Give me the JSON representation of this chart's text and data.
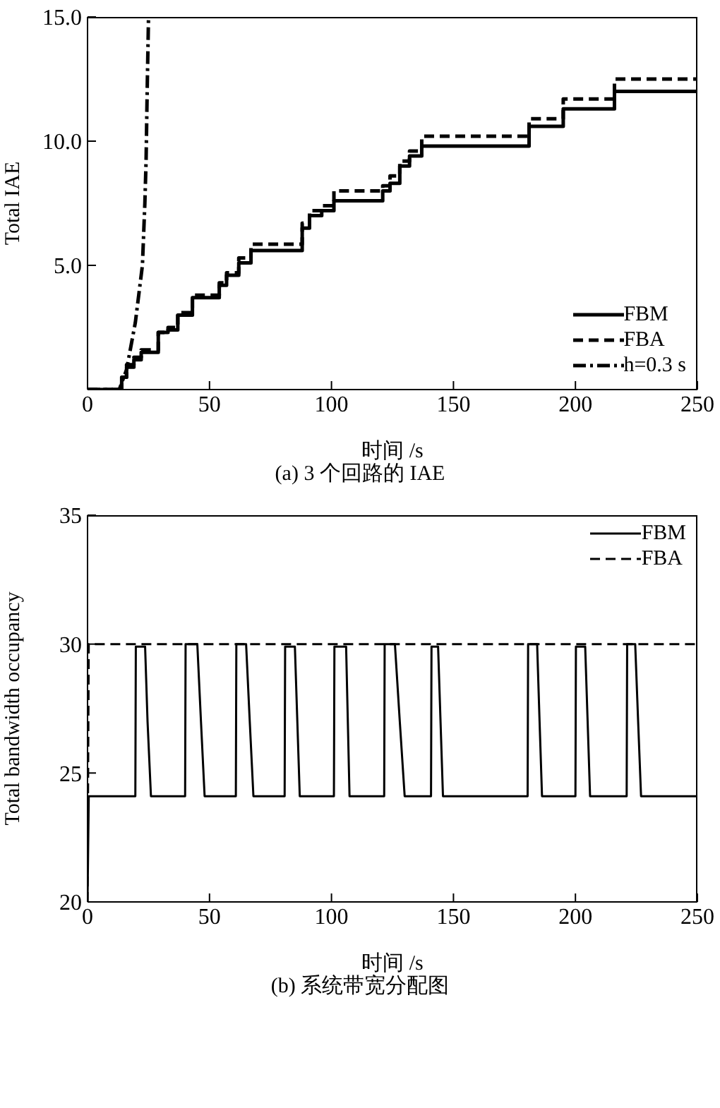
{
  "chart_data": [
    {
      "type": "step",
      "title": "(a) 3 个回路的 IAE",
      "xlabel": "时间 /s",
      "ylabel": "Total IAE",
      "xlim": [
        0,
        250
      ],
      "xticks": [
        0,
        50,
        100,
        150,
        200,
        250
      ],
      "ylim": [
        0,
        15
      ],
      "yticks": [
        {
          "value": 5,
          "label": "5.0"
        },
        {
          "value": 10,
          "label": "10.0"
        },
        {
          "value": 15,
          "label": "15.0"
        }
      ],
      "legend": "bottom right",
      "grid": false,
      "series": [
        {
          "name": "FBM",
          "color": "#000000",
          "line_style": "solid",
          "x": [
            0,
            14,
            16,
            19,
            22,
            29,
            33,
            37,
            43,
            54,
            57,
            62,
            67,
            88,
            91,
            96,
            101,
            121,
            124,
            128,
            132,
            137,
            181,
            195,
            216,
            250
          ],
          "values": [
            0,
            0.5,
            0.9,
            1.2,
            1.5,
            2.3,
            2.4,
            3.0,
            3.7,
            4.2,
            4.6,
            5.1,
            5.6,
            6.5,
            7.0,
            7.2,
            7.6,
            8.0,
            8.3,
            9.0,
            9.4,
            9.8,
            10.6,
            11.3,
            12.0,
            12.0
          ]
        },
        {
          "name": "FBA",
          "color": "#000000",
          "line_style": "dashed",
          "x": [
            0,
            14,
            16,
            19,
            22,
            29,
            33,
            37,
            43,
            54,
            57,
            62,
            67,
            88,
            91,
            96,
            101,
            121,
            124,
            128,
            132,
            137,
            181,
            195,
            216,
            250
          ],
          "values": [
            0,
            0.5,
            1.0,
            1.3,
            1.6,
            2.3,
            2.5,
            3.1,
            3.8,
            4.3,
            4.7,
            5.3,
            5.85,
            6.7,
            7.2,
            7.4,
            8.0,
            8.2,
            8.6,
            9.2,
            9.6,
            10.2,
            10.9,
            11.7,
            12.5,
            12.5
          ]
        },
        {
          "name": "h=0.3 s",
          "type": "line",
          "color": "#000000",
          "line_style": "dashdot",
          "x": [
            0,
            13,
            16,
            19.6,
            22.5,
            23.5,
            24,
            24.5,
            25
          ],
          "values": [
            0,
            0,
            0.8,
            2.7,
            5.0,
            7.5,
            9.2,
            12.3,
            15
          ]
        }
      ]
    },
    {
      "type": "line",
      "title": "(b) 系统带宽分配图",
      "xlabel": "时间 /s",
      "ylabel": "Total bandwidth occupancy",
      "xlim": [
        0,
        250
      ],
      "xticks": [
        0,
        50,
        100,
        150,
        200,
        250
      ],
      "ylim": [
        20,
        35
      ],
      "yticks": [
        20,
        25,
        30,
        35
      ],
      "legend": "top right",
      "grid": false,
      "series": [
        {
          "name": "FBM",
          "color": "#000000",
          "line_style": "solid",
          "x": [
            0,
            0.5,
            19.6,
            19.8,
            23.6,
            24.6,
            26,
            40,
            40.2,
            45,
            46.5,
            48,
            60.8,
            61,
            65,
            66.5,
            68,
            80.8,
            81,
            85,
            86,
            87,
            101,
            101.2,
            106,
            106.7,
            107.4,
            121.6,
            121.8,
            126,
            128,
            130,
            140.8,
            141,
            143.7,
            144.7,
            145.7,
            180.4,
            180.6,
            184.3,
            185.3,
            186.3,
            200,
            200.2,
            204,
            205,
            206,
            221,
            221.2,
            224.5,
            225.7,
            226.9,
            250
          ],
          "values": [
            20,
            24.1,
            24.1,
            29.9,
            29.9,
            27,
            24.1,
            24.1,
            30,
            30,
            27,
            24.1,
            24.1,
            30,
            30,
            27,
            24.1,
            24.1,
            29.9,
            29.9,
            27,
            24.1,
            24.1,
            29.9,
            29.9,
            27,
            24.1,
            24.1,
            30,
            30,
            27,
            24.1,
            24.1,
            29.9,
            29.9,
            27,
            24.1,
            24.1,
            30,
            30,
            27,
            24.1,
            24.1,
            29.9,
            29.9,
            27,
            24.1,
            24.1,
            30,
            30,
            27,
            24.1,
            24.1
          ]
        },
        {
          "name": "FBA",
          "color": "#000000",
          "line_style": "dashed",
          "x": [
            0,
            0.5,
            250
          ],
          "values": [
            20,
            30,
            30
          ]
        }
      ]
    }
  ]
}
